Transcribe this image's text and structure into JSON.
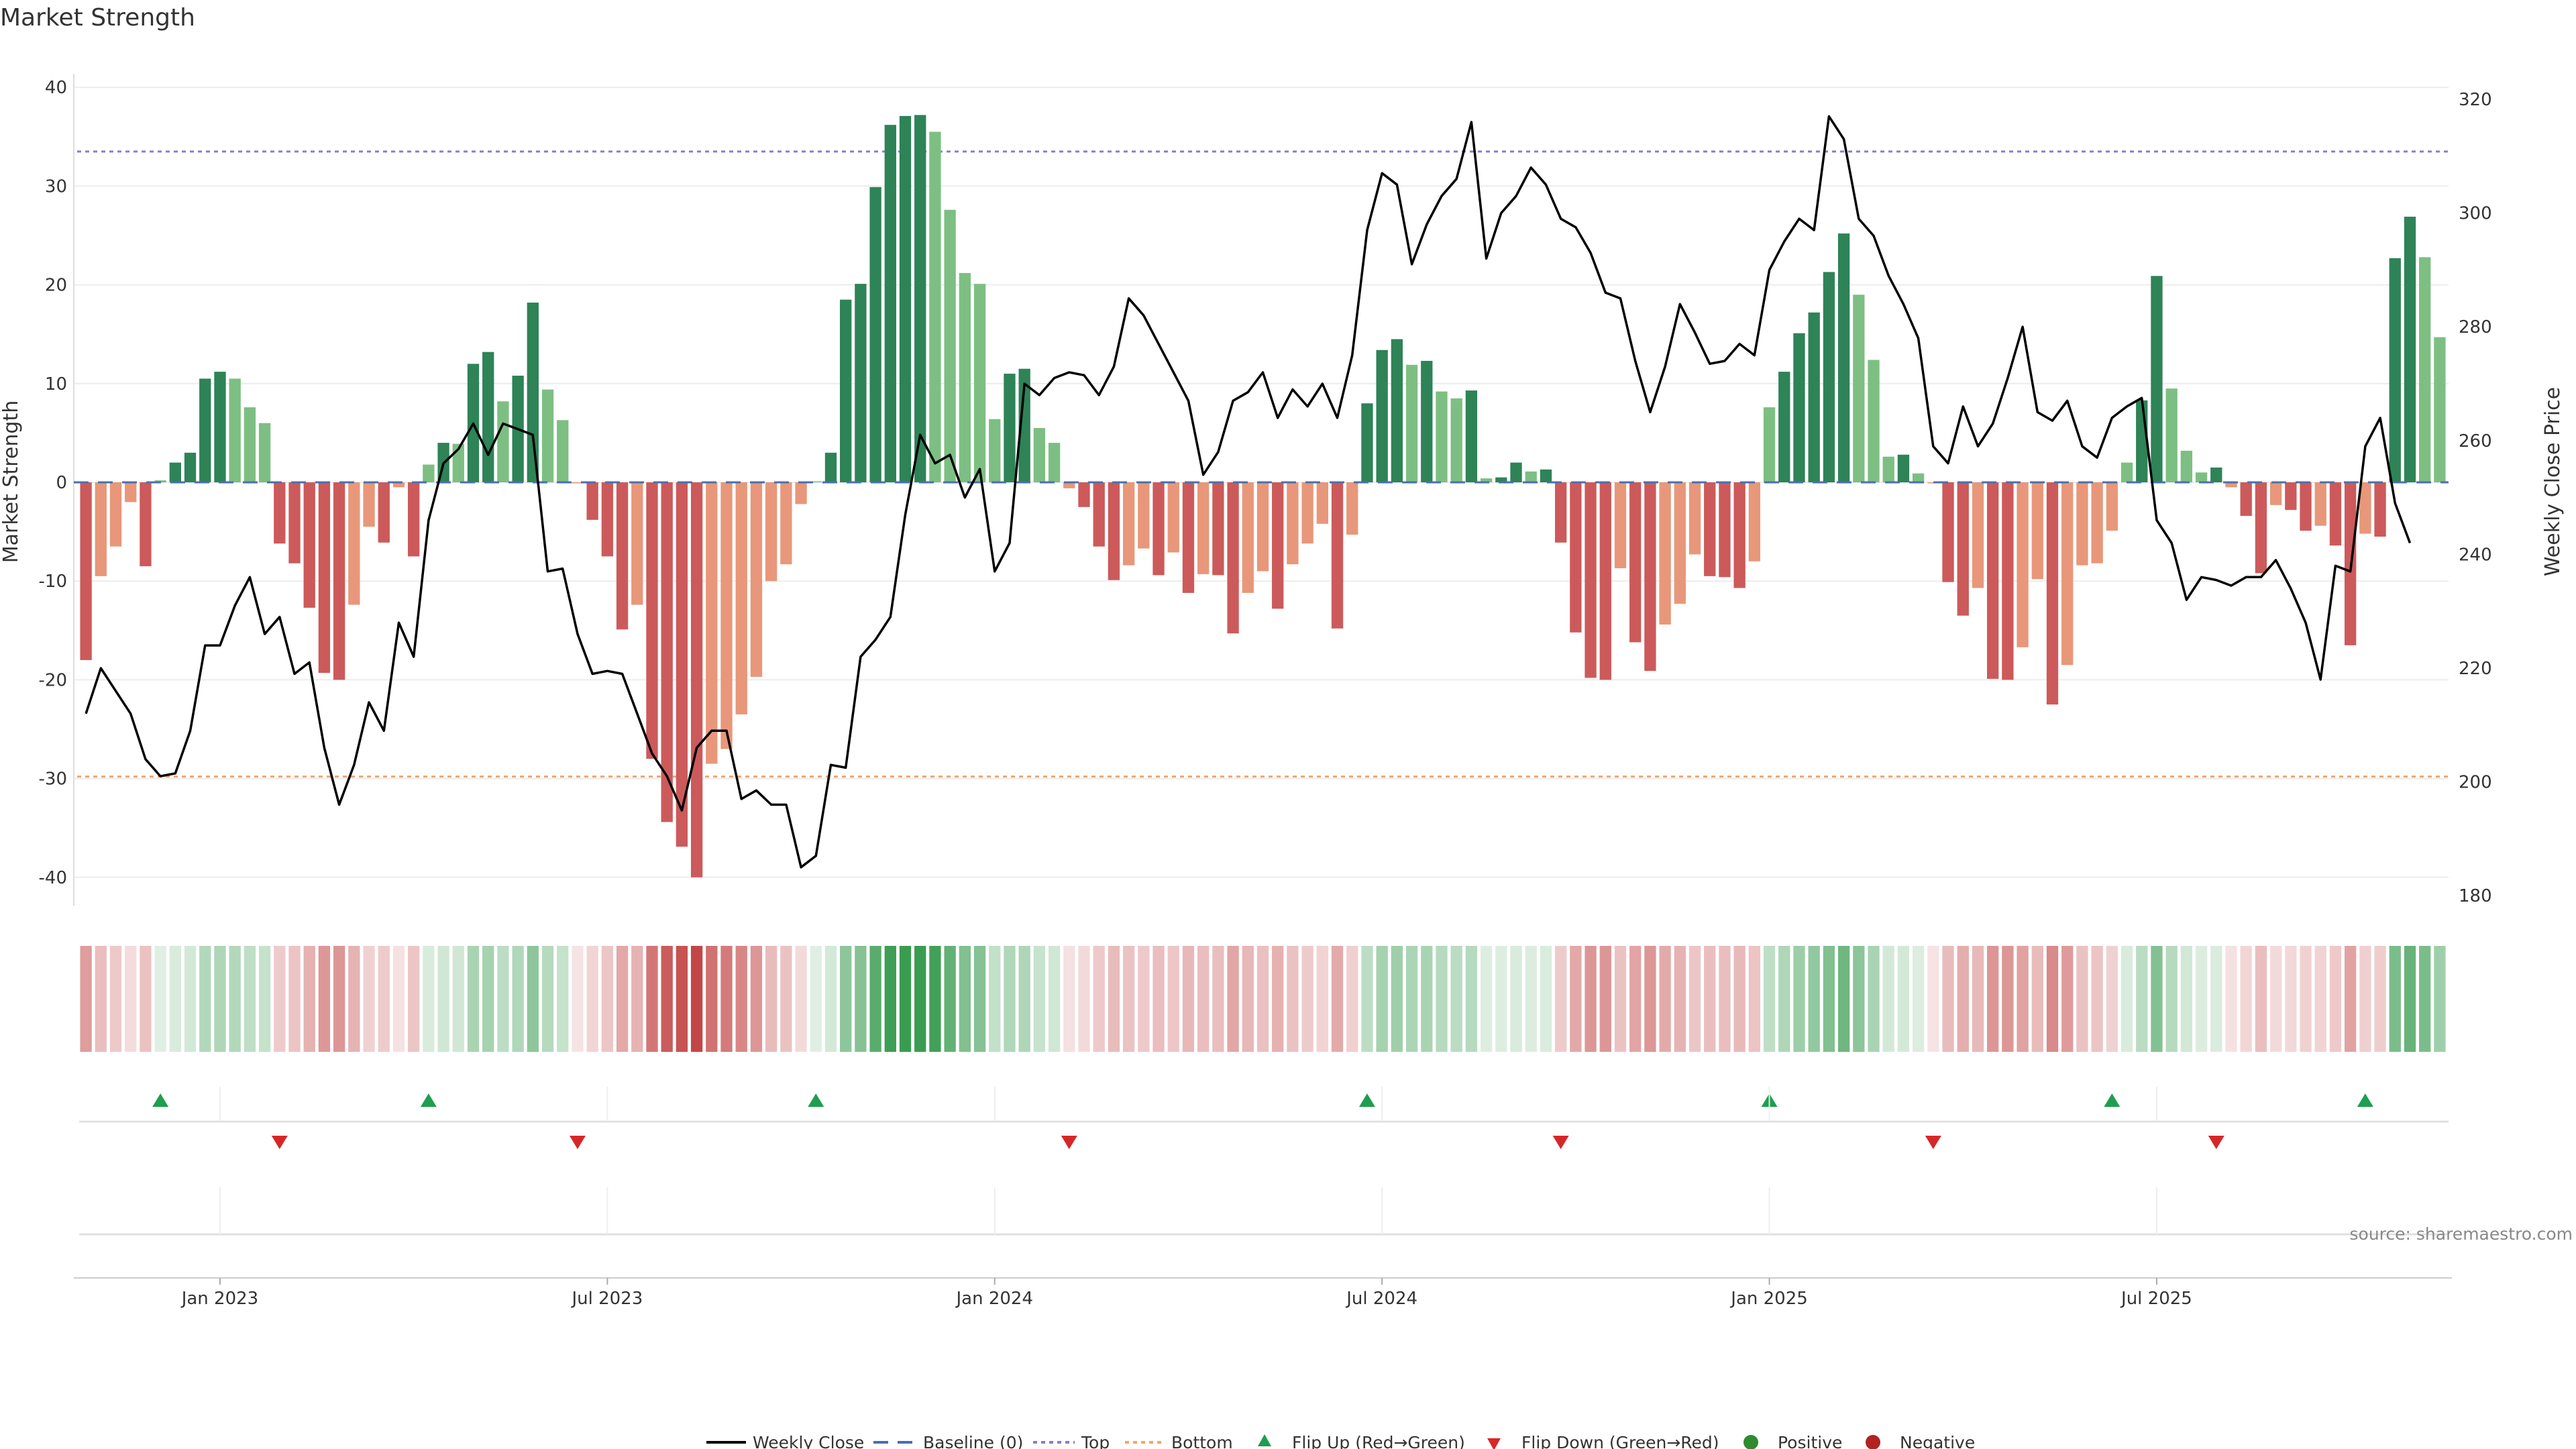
{
  "chart_data": {
    "type": "bar",
    "title": "Market Strength",
    "ylabel": "Market Strength",
    "y2label": "Weekly Close Price",
    "ylim": [
      -44,
      44
    ],
    "y2lim": [
      174,
      330
    ],
    "yticks": [
      -40,
      -30,
      -20,
      -10,
      0,
      10,
      20,
      30,
      40
    ],
    "y2ticks": [
      180,
      200,
      220,
      240,
      260,
      280,
      300,
      320
    ],
    "xticks": [
      "Jan 2023",
      "Jul 2023",
      "Jan 2024",
      "Jul 2024",
      "Jan 2025",
      "Jul 2025"
    ],
    "xtick_weeks": [
      9,
      35,
      61,
      87,
      113,
      139
    ],
    "top_line": 33.5,
    "bottom_line": -29.8,
    "strength": [
      -18,
      -9.5,
      -6.5,
      -2,
      -8.5,
      0.2,
      2,
      3,
      10.5,
      11.2,
      10.5,
      7.6,
      6,
      -6.2,
      -8.2,
      -12.7,
      -19.3,
      -20,
      -12.4,
      -4.5,
      -6.1,
      -0.5,
      -7.5,
      1.8,
      4,
      3.9,
      12,
      13.2,
      8.2,
      10.8,
      18.2,
      9.4,
      6.3,
      -0.1,
      -3.8,
      -7.5,
      -14.9,
      -12.4,
      -28,
      -34.4,
      -36.9,
      -40,
      -28.5,
      -27,
      -23.5,
      -19.7,
      -10,
      -8.3,
      -2.2,
      0.1,
      3,
      18.5,
      20.1,
      29.9,
      36.2,
      37.1,
      37.2,
      35.5,
      27.6,
      21.2,
      20.1,
      6.4,
      11,
      11.5,
      5.5,
      4,
      -0.6,
      -2.5,
      -6.5,
      -9.9,
      -8.4,
      -6.7,
      -9.4,
      -7.1,
      -11.2,
      -9.3,
      -9.4,
      -15.3,
      -11.2,
      -9,
      -12.8,
      -8.3,
      -6.2,
      -4.2,
      -14.8,
      -5.3,
      8,
      13.4,
      14.5,
      11.9,
      12.3,
      9.2,
      8.5,
      9.3,
      0.4,
      0.5,
      2,
      1.1,
      1.3,
      -6.1,
      -15.2,
      -19.8,
      -20,
      -8.7,
      -16.2,
      -19.1,
      -14.4,
      -12.3,
      -7.3,
      -9.5,
      -9.6,
      -10.7,
      -8,
      7.6,
      11.2,
      15.1,
      17.2,
      21.3,
      25.2,
      19,
      12.4,
      2.6,
      2.8,
      0.9,
      -0.1,
      -10.1,
      -13.5,
      -10.7,
      -19.9,
      -20,
      -16.7,
      -9.8,
      -22.5,
      -18.5,
      -8.4,
      -8.2,
      -4.9,
      2,
      8.3,
      20.9,
      9.5,
      3.2,
      1,
      1.5,
      -0.5,
      -3.4,
      -9.2,
      -2.3,
      -2.8,
      -4.9,
      -4.4,
      -6.4,
      -16.5,
      -5.2,
      -5.5,
      22.7,
      26.9,
      22.8,
      14.7
    ],
    "close": [
      212,
      220,
      216,
      212,
      204,
      201,
      201.5,
      209,
      224,
      224,
      231,
      236,
      226,
      229,
      219,
      221,
      206,
      196,
      203,
      214,
      209,
      228,
      222,
      246,
      256,
      258.5,
      263,
      257.5,
      263,
      262,
      261,
      237,
      237.5,
      226,
      219,
      219.5,
      219,
      212,
      205,
      201,
      195,
      206,
      209,
      209,
      197,
      198.5,
      196,
      196,
      185,
      187,
      203,
      202.5,
      222,
      225,
      229,
      247,
      261,
      256,
      257.5,
      250,
      255,
      237,
      242,
      270,
      268,
      271,
      272,
      271.5,
      268,
      273,
      285,
      282,
      277,
      272,
      267,
      254,
      258,
      267,
      268.5,
      272,
      264,
      269,
      266,
      270,
      264,
      275,
      297,
      307,
      305,
      291,
      298,
      303,
      306,
      316,
      292,
      300,
      303,
      308,
      305,
      299,
      297.5,
      293,
      286,
      285,
      274,
      265,
      273,
      284,
      279,
      273.5,
      274,
      277,
      275,
      290,
      295,
      299,
      297,
      317,
      313,
      299,
      296,
      289,
      284,
      278,
      259,
      256,
      266,
      259,
      263,
      271,
      280,
      265,
      263.5,
      267,
      259,
      257,
      264,
      266,
      267.5,
      246,
      242,
      232,
      236,
      235.5,
      234.5,
      236,
      236,
      239,
      234,
      228,
      218,
      238,
      237,
      259,
      264,
      249,
      242
    ],
    "flip_up_weeks": [
      5,
      23,
      49,
      86,
      113,
      136,
      153
    ],
    "flip_down_weeks": [
      13,
      33,
      66,
      99,
      124,
      143
    ],
    "legend": [
      "Weekly Close",
      "Baseline (0)",
      "Top",
      "Bottom",
      "Flip Up (Red→Green)",
      "Flip Down (Green→Red)",
      "Positive",
      "Negative"
    ],
    "source": "source: sharemaestro.com"
  },
  "colors": {
    "pos_strong": "#2e8357",
    "pos_light": "#7dbf82",
    "neg_strong": "#cc5a5b",
    "neg_light": "#e8977a",
    "top_line": "#8e7cc3",
    "bottom_line": "#f0a66c",
    "baseline": "#4a6fb0",
    "close_line": "#000000",
    "flip_up": "#1e9e4e",
    "flip_down": "#d62728",
    "positive": "#2e8b2e",
    "negative": "#b22222"
  }
}
